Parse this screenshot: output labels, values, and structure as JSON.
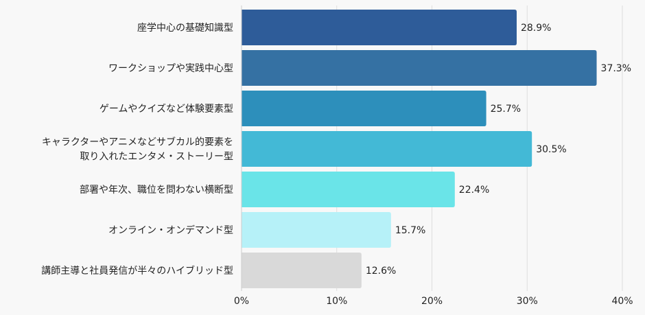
{
  "chart_data": {
    "type": "bar",
    "orientation": "horizontal",
    "title": "",
    "xlabel": "",
    "ylabel": "",
    "categories": [
      [
        "座学中心の基礎知識型"
      ],
      [
        "ワークショップや実践中心型"
      ],
      [
        "ゲームやクイズなど体験要素型"
      ],
      [
        "キャラクターやアニメなどサブカル的要素を",
        "取り入れたエンタメ・ストーリー型"
      ],
      [
        "部署や年次、職位を問わない横断型"
      ],
      [
        "オンライン・オンデマンド型"
      ],
      [
        "講師主導と社員発信が半々のハイブリッド型"
      ]
    ],
    "values": [
      28.9,
      37.3,
      25.7,
      30.5,
      22.4,
      15.7,
      12.6
    ],
    "value_labels": [
      "28.9%",
      "37.3%",
      "25.7%",
      "30.5%",
      "22.4%",
      "15.7%",
      "12.6%"
    ],
    "colors": [
      "#2e5c99",
      "#3571a3",
      "#2d8fbb",
      "#43b9d6",
      "#6ae4e8",
      "#b6f1f8",
      "#d9d9d9"
    ],
    "xlim": [
      0,
      40
    ],
    "x_ticks": [
      0,
      10,
      20,
      30,
      40
    ],
    "x_tick_labels": [
      "0%",
      "10%",
      "20%",
      "30%",
      "40%"
    ],
    "grid": true
  }
}
